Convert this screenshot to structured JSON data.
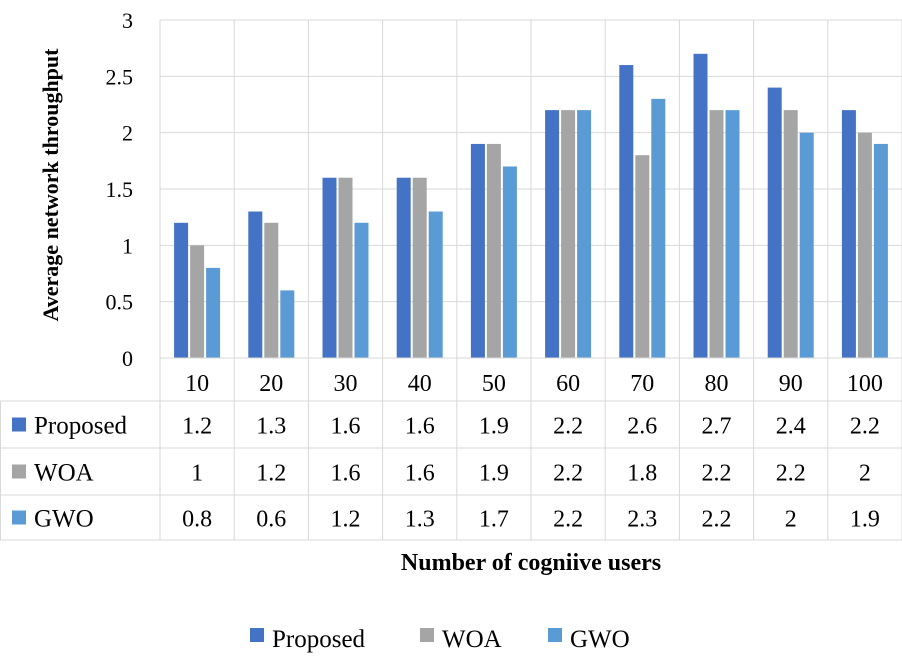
{
  "chart_data": {
    "type": "bar",
    "title": "",
    "xlabel": "Number of cogniive users",
    "ylabel": "Average network throughput",
    "ylim": [
      0,
      3
    ],
    "ytick_values": [
      0,
      0.5,
      1,
      1.5,
      2,
      2.5,
      3
    ],
    "ytick_labels": [
      "0",
      "0.5",
      "1",
      "1.5",
      "2",
      "2.5",
      "3"
    ],
    "categories": [
      "10",
      "20",
      "30",
      "40",
      "50",
      "60",
      "70",
      "80",
      "90",
      "100"
    ],
    "grid": true,
    "data_table": true,
    "legend_position": "bottom",
    "series": [
      {
        "name": "Proposed",
        "color": "#4472C4",
        "values": [
          1.2,
          1.3,
          1.6,
          1.6,
          1.9,
          2.2,
          2.6,
          2.7,
          2.4,
          2.2
        ],
        "labels": [
          "1.2",
          "1.3",
          "1.6",
          "1.6",
          "1.9",
          "2.2",
          "2.6",
          "2.7",
          "2.4",
          "2.2"
        ]
      },
      {
        "name": "WOA",
        "color": "#A5A5A5",
        "values": [
          1,
          1.2,
          1.6,
          1.6,
          1.9,
          2.2,
          1.8,
          2.2,
          2.2,
          2
        ],
        "labels": [
          "1",
          "1.2",
          "1.6",
          "1.6",
          "1.9",
          "2.2",
          "1.8",
          "2.2",
          "2.2",
          "2"
        ]
      },
      {
        "name": "GWO",
        "color": "#5B9BD5",
        "values": [
          0.8,
          0.6,
          1.2,
          1.3,
          1.7,
          2.2,
          2.3,
          2.2,
          2,
          1.9
        ],
        "labels": [
          "0.8",
          "0.6",
          "1.2",
          "1.3",
          "1.7",
          "2.2",
          "2.3",
          "2.2",
          "2",
          "1.9"
        ]
      }
    ]
  }
}
